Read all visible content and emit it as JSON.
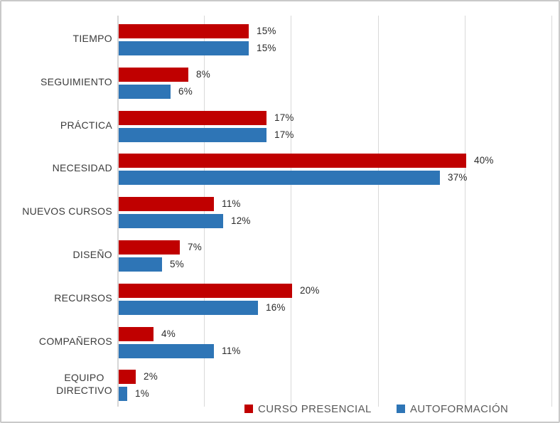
{
  "chart_data": {
    "type": "bar",
    "orientation": "horizontal",
    "title": "",
    "categories": [
      "TIEMPO",
      "SEGUIMIENTO",
      "PRÁCTICA",
      "NECESIDAD",
      "NUEVOS CURSOS",
      "DISEÑO",
      "RECURSOS",
      "COMPAÑEROS",
      "EQUIPO DIRECTIVO"
    ],
    "series": [
      {
        "name": "CURSO PRESENCIAL",
        "color": "#C00000",
        "values": [
          15,
          8,
          17,
          40,
          11,
          7,
          20,
          4,
          2
        ],
        "labels": [
          "15%",
          "8%",
          "17%",
          "40%",
          "11%",
          "7%",
          "20%",
          "4%",
          "2%"
        ]
      },
      {
        "name": "AUTOFORMACIÓN",
        "color": "#2E75B6",
        "values": [
          15,
          6,
          17,
          37,
          12,
          5,
          16,
          11,
          1
        ],
        "labels": [
          "15%",
          "6%",
          "17%",
          "37%",
          "12%",
          "5%",
          "16%",
          "11%",
          "1%"
        ]
      }
    ],
    "xlabel": "",
    "ylabel": "",
    "xlim": [
      0,
      50
    ],
    "gridline_step": 10,
    "grid": true,
    "data_labels": true,
    "legend_position": "bottom-inside"
  },
  "colors": {
    "background": "#FFFFFF",
    "frame_border": "#C9C9C9",
    "gridline": "#D9D9D9",
    "axis_line": "#D6D6D6",
    "category_text": "#3B3B3B",
    "value_text": "#2B2B2B",
    "legend_text": "#595959"
  }
}
